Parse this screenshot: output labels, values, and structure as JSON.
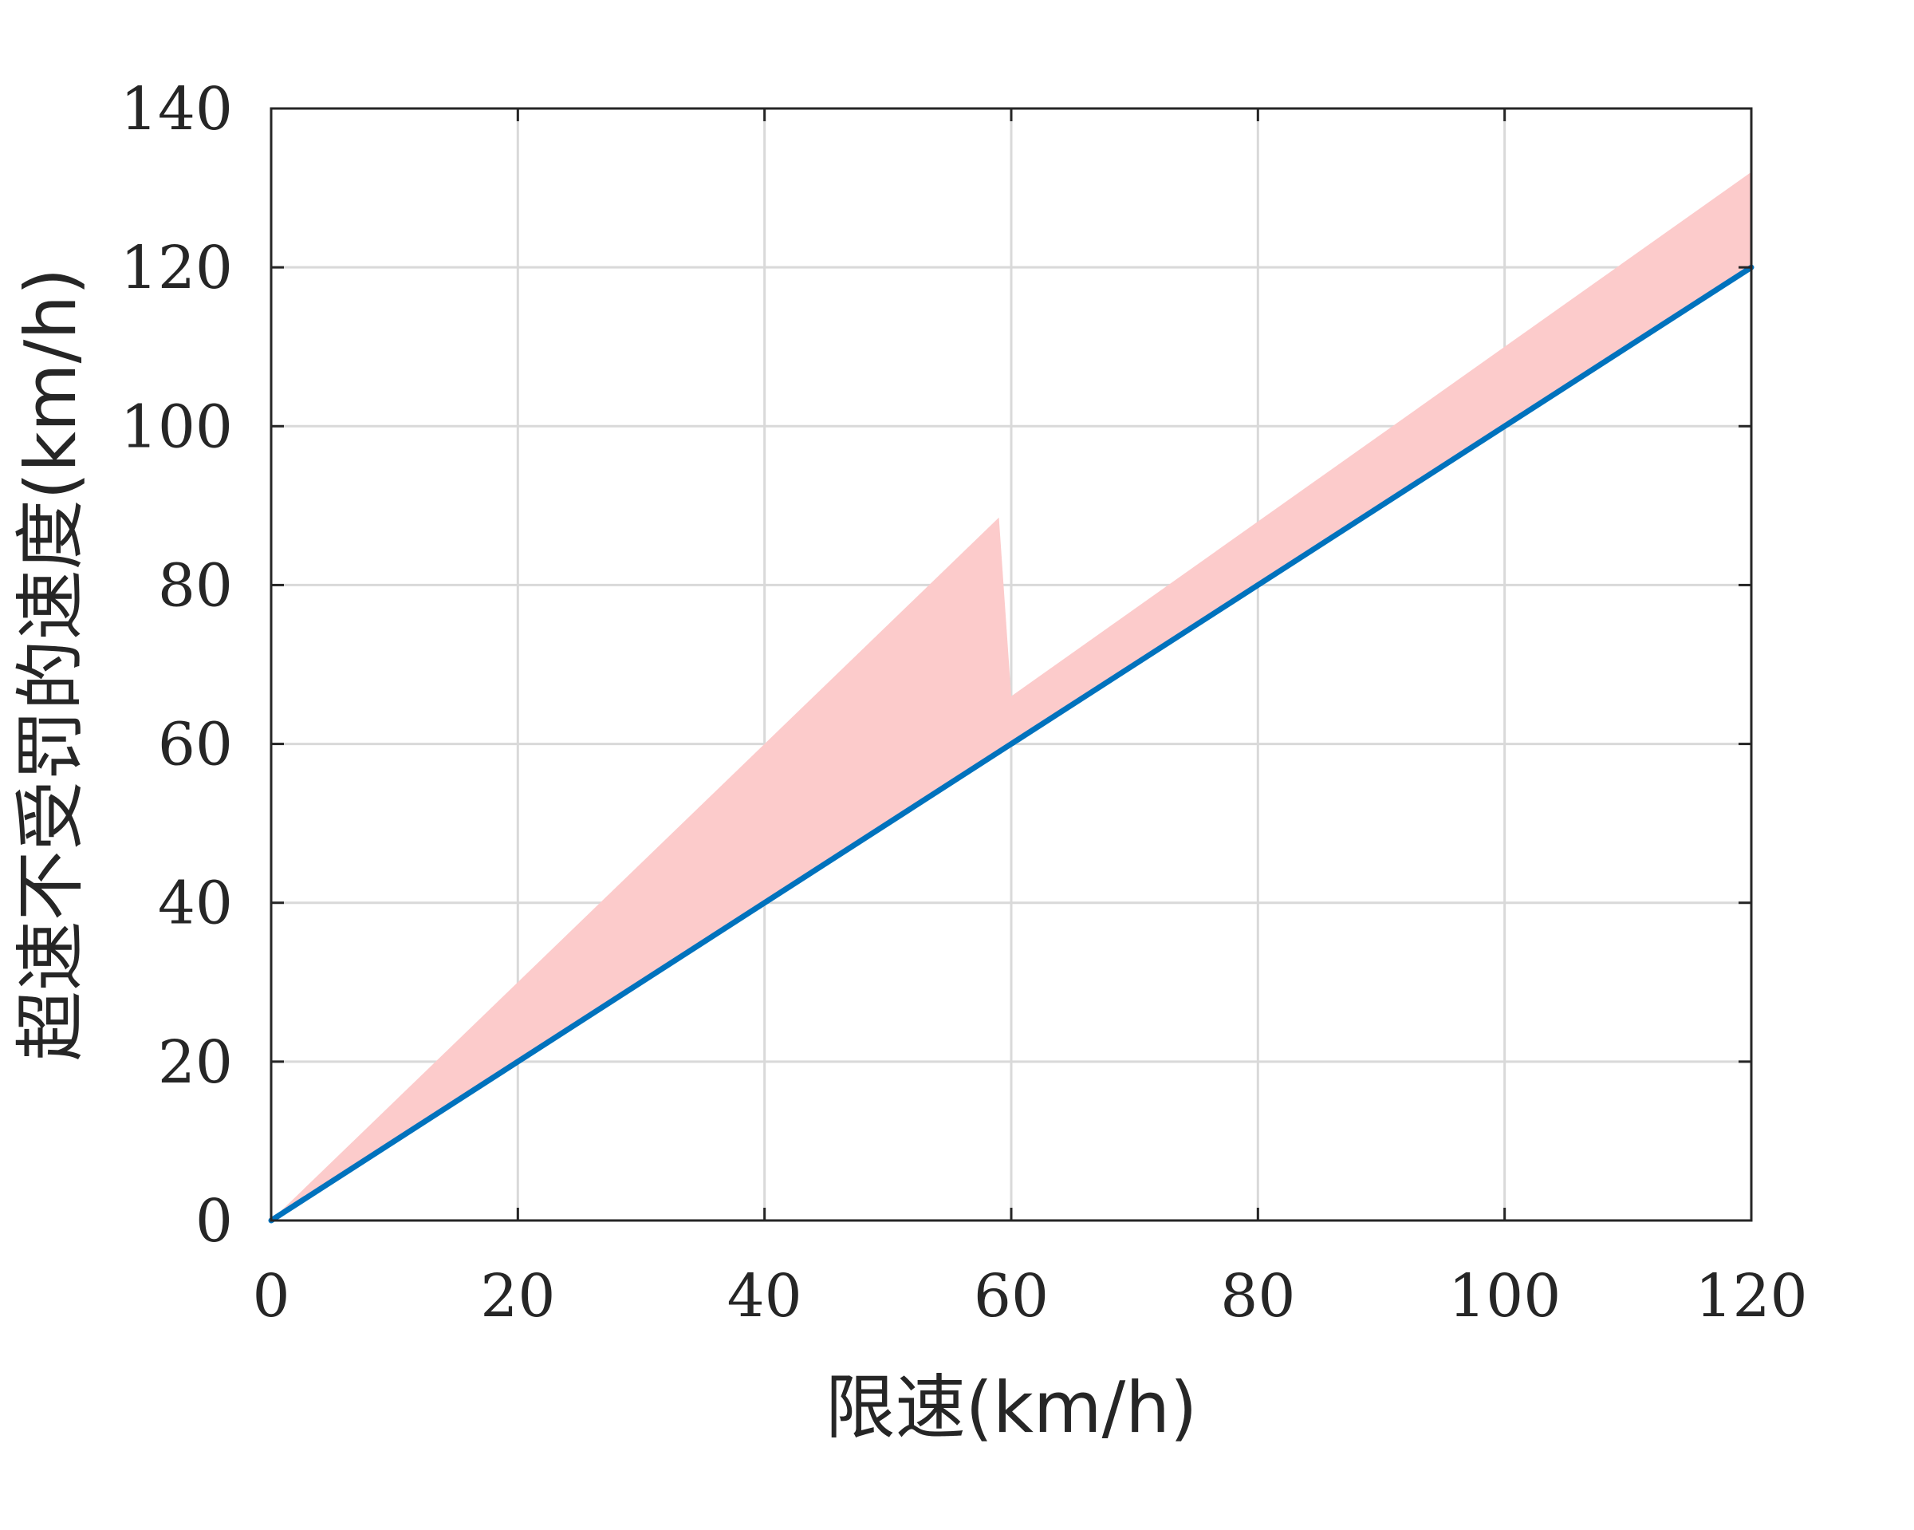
{
  "chart_data": {
    "type": "area",
    "title": "",
    "xlabel": "限速(km/h)",
    "ylabel": "超速不受罚的速度(km/h)",
    "xlim": [
      0,
      120
    ],
    "ylim": [
      0,
      140
    ],
    "xticks": [
      0,
      20,
      40,
      60,
      80,
      100,
      120
    ],
    "yticks": [
      0,
      20,
      40,
      60,
      80,
      100,
      120,
      140
    ],
    "xtick_labels": [
      "0",
      "20",
      "40",
      "60",
      "80",
      "100",
      "120"
    ],
    "ytick_labels": [
      "0",
      "20",
      "40",
      "60",
      "80",
      "100",
      "120",
      "140"
    ],
    "grid": true,
    "legend": "none",
    "series": [
      {
        "kind": "band",
        "color": "#fccbcb",
        "x": [
          0,
          59,
          59,
          60,
          120
        ],
        "upper": [
          0,
          88.5,
          88.5,
          66,
          132
        ],
        "lower": [
          0,
          59,
          59,
          60,
          120
        ]
      },
      {
        "kind": "line",
        "color": "#0072bd",
        "x": [
          0,
          120
        ],
        "y": [
          0,
          120
        ]
      }
    ]
  }
}
